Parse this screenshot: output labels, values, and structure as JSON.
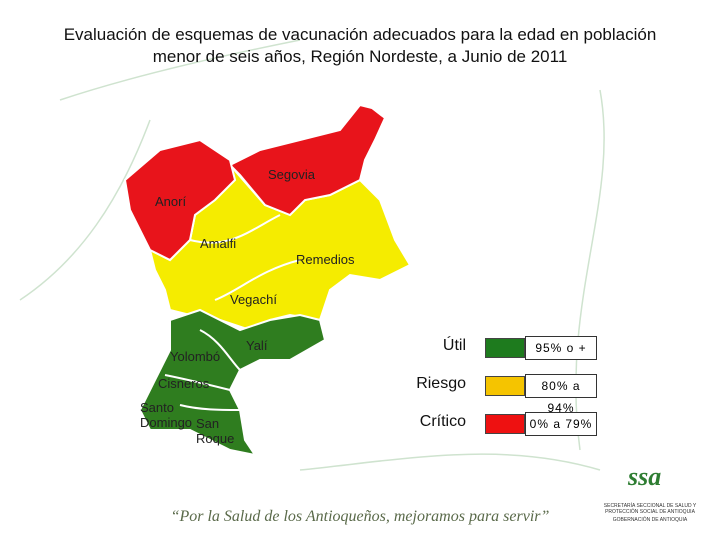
{
  "title": "Evaluación de esquemas de vacunación adecuados para la edad en población menor de seis años, Región Nordeste, a Junio de 2011",
  "municipalities": [
    {
      "name": "Segovia",
      "color": "#e8141b"
    },
    {
      "name": "Anorí",
      "color": "#e8141b"
    },
    {
      "name": "Amalfi",
      "color": "#f5ec00"
    },
    {
      "name": "Remedios",
      "color": "#f5ec00"
    },
    {
      "name": "Vegachí",
      "color": "#f5ec00"
    },
    {
      "name": "Yalí",
      "color": "#2f7d1f"
    },
    {
      "name": "Yolombó",
      "color": "#2f7d1f"
    },
    {
      "name": "Cisneros",
      "color": "#2f7d1f"
    },
    {
      "name": "Santo Domingo",
      "color": "#2f7d1f"
    },
    {
      "name": "San Roque",
      "color": "#2f7d1f"
    }
  ],
  "legend": [
    {
      "label": "Útil",
      "range": "95% o +",
      "color": "#1e7b1e"
    },
    {
      "label": "Riesgo",
      "range": "80% a 94%",
      "color": "#f5c400"
    },
    {
      "label": "Crítico",
      "range": "0% a 79%",
      "color": "#ee1111"
    }
  ],
  "slogan": "“Por la Salud de los Antioqueños, mejoramos para servir”",
  "logo": {
    "mark": "ssa",
    "lines": [
      "SECRETARÍA SECCIONAL DE SALUD Y PROTECCIÓN SOCIAL DE ANTIOQUIA",
      "GOBERNACIÓN DE ANTIOQUIA"
    ]
  }
}
